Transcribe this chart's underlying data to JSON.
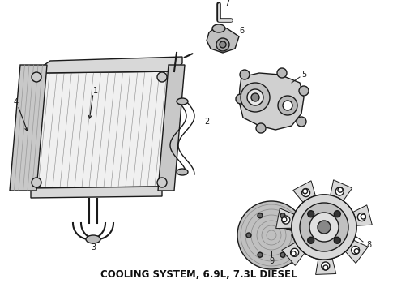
{
  "title": "COOLING SYSTEM, 6.9L, 7.3L DIESEL",
  "title_fontsize": 8.5,
  "title_fontweight": "bold",
  "bg_color": "#ffffff",
  "fig_width": 4.9,
  "fig_height": 3.6,
  "dpi": 100
}
